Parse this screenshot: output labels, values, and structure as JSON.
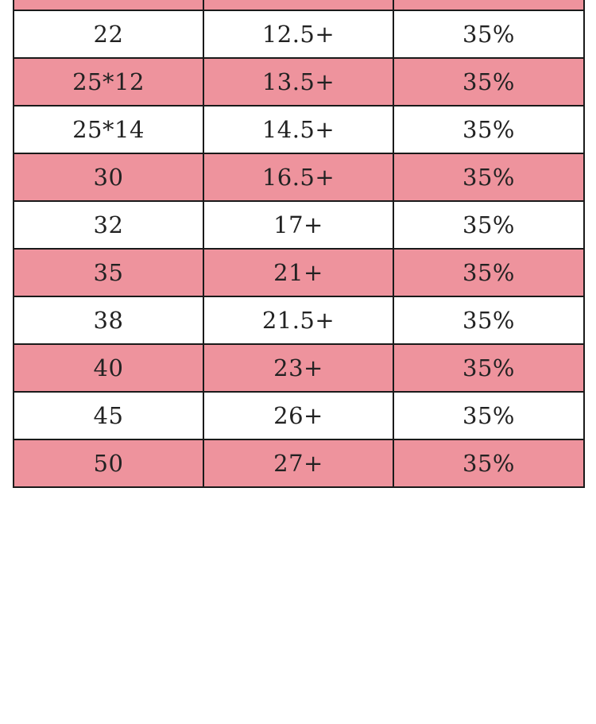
{
  "colors": {
    "pink_row": "#ee939d",
    "white_row": "#ffffff",
    "border": "#1a1a1a",
    "text": "#222222"
  },
  "rows": [
    {
      "c1": "22",
      "c2": "12.5+",
      "c3": "35%"
    },
    {
      "c1": "25*12",
      "c2": "13.5+",
      "c3": "35%"
    },
    {
      "c1": "25*14",
      "c2": "14.5+",
      "c3": "35%"
    },
    {
      "c1": "30",
      "c2": "16.5+",
      "c3": "35%"
    },
    {
      "c1": "32",
      "c2": "17+",
      "c3": "35%"
    },
    {
      "c1": "35",
      "c2": "21+",
      "c3": "35%"
    },
    {
      "c1": "38",
      "c2": "21.5+",
      "c3": "35%"
    },
    {
      "c1": "40",
      "c2": "23+",
      "c3": "35%"
    },
    {
      "c1": "45",
      "c2": "26+",
      "c3": "35%"
    },
    {
      "c1": "50",
      "c2": "27+",
      "c3": "35%"
    }
  ]
}
